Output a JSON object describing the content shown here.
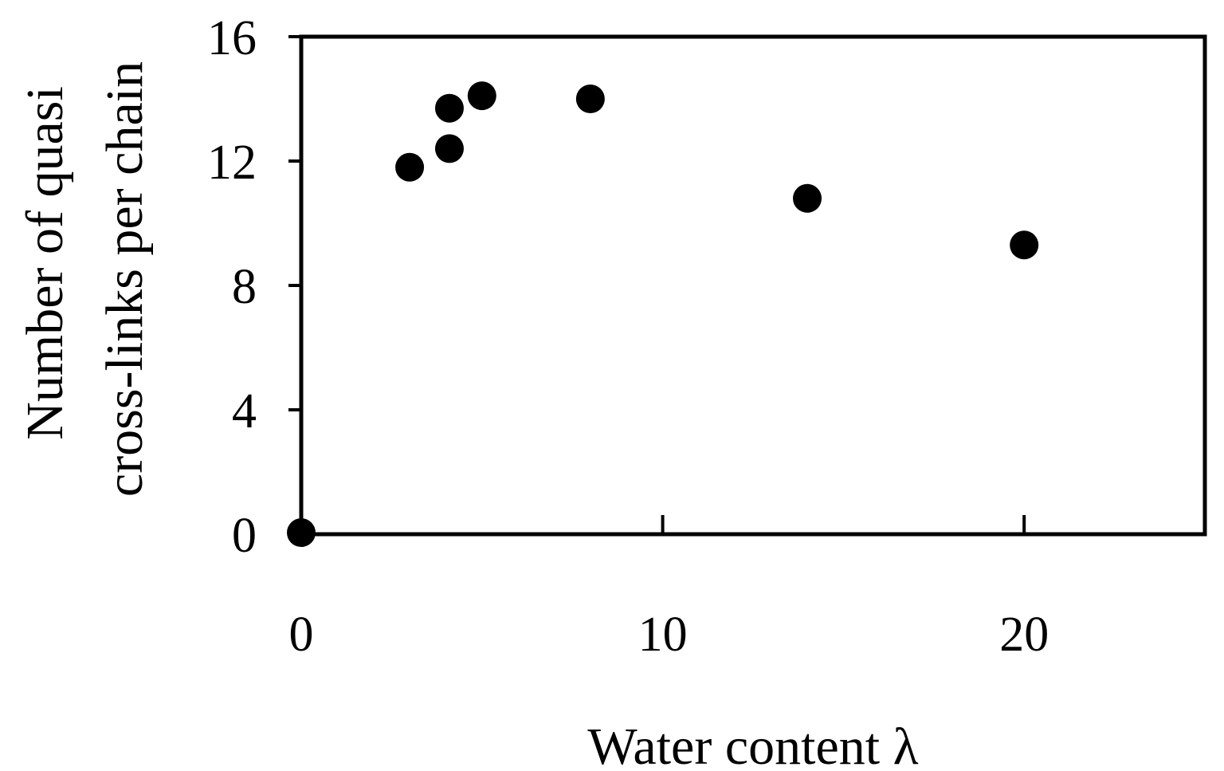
{
  "chart_data": {
    "type": "scatter",
    "title": "",
    "xlabel": "Water content λ",
    "ylabel_lines": [
      "Number of quasi",
      "cross-links per chain"
    ],
    "xlim": [
      0,
      25
    ],
    "ylim": [
      0,
      16
    ],
    "x_ticks": [
      0,
      10,
      20
    ],
    "y_ticks": [
      0,
      4,
      8,
      12,
      16
    ],
    "grid": false,
    "legend": "none",
    "marker_color": "#000000",
    "points": [
      {
        "x": 0,
        "y": 0.05
      },
      {
        "x": 3,
        "y": 11.8
      },
      {
        "x": 4.1,
        "y": 12.4
      },
      {
        "x": 4.1,
        "y": 13.7
      },
      {
        "x": 5,
        "y": 14.1
      },
      {
        "x": 8,
        "y": 14.0
      },
      {
        "x": 14,
        "y": 10.8
      },
      {
        "x": 20,
        "y": 9.3
      }
    ]
  }
}
